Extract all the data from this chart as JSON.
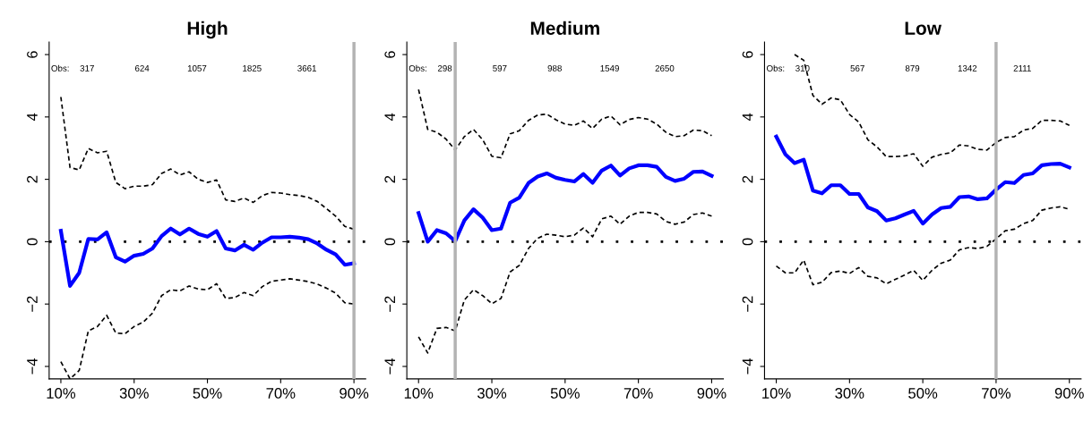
{
  "chart_data": [
    {
      "type": "line",
      "title": "High",
      "x": [
        10,
        12.5,
        15,
        17.5,
        20,
        22.5,
        25,
        27.5,
        30,
        32.5,
        35,
        37.5,
        40,
        42.5,
        45,
        47.5,
        50,
        52.5,
        55,
        57.5,
        60,
        62.5,
        65,
        67.5,
        70,
        72.5,
        75,
        77.5,
        80,
        82.5,
        85,
        87.5,
        90
      ],
      "xlim": [
        6.8,
        93.2
      ],
      "ylim": [
        -4.4,
        6.4
      ],
      "xticks": [
        {
          "value": 10,
          "label": "10%"
        },
        {
          "value": 30,
          "label": "30%"
        },
        {
          "value": 50,
          "label": "50%"
        },
        {
          "value": 70,
          "label": "70%"
        },
        {
          "value": 90,
          "label": "90%"
        }
      ],
      "yticks": [
        -4,
        -2,
        0,
        2,
        4,
        6
      ],
      "series": [
        {
          "color": "#0000ff",
          "line_style": "solid",
          "values": [
            0.35,
            -1.42,
            -1.0,
            0.09,
            0.07,
            0.3,
            -0.5,
            -0.64,
            -0.45,
            -0.39,
            -0.22,
            0.18,
            0.42,
            0.23,
            0.42,
            0.25,
            0.16,
            0.34,
            -0.22,
            -0.28,
            -0.1,
            -0.26,
            -0.03,
            0.14,
            0.14,
            0.16,
            0.13,
            0.08,
            -0.06,
            -0.26,
            -0.41,
            -0.74,
            -0.69
          ]
        },
        {
          "color": "#000000",
          "line_style": "dashed",
          "values": [
            4.64,
            2.38,
            2.3,
            2.99,
            2.85,
            2.9,
            1.9,
            1.7,
            1.78,
            1.78,
            1.83,
            2.19,
            2.33,
            2.14,
            2.24,
            2.0,
            1.9,
            1.98,
            1.34,
            1.29,
            1.4,
            1.26,
            1.48,
            1.58,
            1.56,
            1.51,
            1.48,
            1.42,
            1.29,
            1.06,
            0.82,
            0.49,
            0.4
          ]
        },
        {
          "color": "#000000",
          "line_style": "dashed",
          "values": [
            -3.85,
            -4.4,
            -4.13,
            -2.86,
            -2.72,
            -2.36,
            -2.93,
            -2.95,
            -2.72,
            -2.58,
            -2.29,
            -1.73,
            -1.54,
            -1.58,
            -1.42,
            -1.52,
            -1.54,
            -1.35,
            -1.82,
            -1.79,
            -1.63,
            -1.73,
            -1.44,
            -1.27,
            -1.23,
            -1.19,
            -1.23,
            -1.28,
            -1.36,
            -1.49,
            -1.65,
            -1.96,
            -2.0
          ]
        }
      ],
      "ref_lines": [
        {
          "axis": "y",
          "value": 0,
          "color": "#000000",
          "line_style": "dotted"
        },
        {
          "axis": "x",
          "value": 90,
          "color": "#b3b3b3",
          "line_style": "solid"
        }
      ],
      "annotations": [
        "Obs:",
        "317",
        "624",
        "1057",
        "1825",
        "3661"
      ]
    },
    {
      "type": "line",
      "title": "Medium",
      "x": [
        10,
        12.5,
        15,
        17.5,
        20,
        22.5,
        25,
        27.5,
        30,
        32.5,
        35,
        37.5,
        40,
        42.5,
        45,
        47.5,
        50,
        52.5,
        55,
        57.5,
        60,
        62.5,
        65,
        67.5,
        70,
        72.5,
        75,
        77.5,
        80,
        82.5,
        85,
        87.5,
        90
      ],
      "xlim": [
        6.8,
        93.2
      ],
      "ylim": [
        -4.4,
        6.4
      ],
      "xticks": [
        {
          "value": 10,
          "label": "10%"
        },
        {
          "value": 30,
          "label": "30%"
        },
        {
          "value": 50,
          "label": "50%"
        },
        {
          "value": 70,
          "label": "70%"
        },
        {
          "value": 90,
          "label": "90%"
        }
      ],
      "yticks": [
        -4,
        -2,
        0,
        2,
        4,
        6
      ],
      "series": [
        {
          "color": "#0000ff",
          "line_style": "solid",
          "values": [
            0.92,
            0.0,
            0.37,
            0.27,
            0.02,
            0.68,
            1.04,
            0.77,
            0.37,
            0.42,
            1.25,
            1.41,
            1.88,
            2.09,
            2.19,
            2.05,
            1.98,
            1.93,
            2.17,
            1.89,
            2.28,
            2.44,
            2.12,
            2.35,
            2.45,
            2.45,
            2.4,
            2.08,
            1.95,
            2.02,
            2.24,
            2.25,
            2.11
          ]
        },
        {
          "color": "#000000",
          "line_style": "dashed",
          "values": [
            4.88,
            3.6,
            3.51,
            3.29,
            2.94,
            3.37,
            3.6,
            3.27,
            2.74,
            2.69,
            3.46,
            3.56,
            3.89,
            4.06,
            4.09,
            3.91,
            3.77,
            3.73,
            3.87,
            3.63,
            3.93,
            4.03,
            3.75,
            3.92,
            3.98,
            3.93,
            3.77,
            3.51,
            3.37,
            3.4,
            3.58,
            3.56,
            3.4
          ]
        },
        {
          "color": "#000000",
          "line_style": "dashed",
          "values": [
            -3.05,
            -3.57,
            -2.78,
            -2.75,
            -2.86,
            -1.87,
            -1.54,
            -1.73,
            -1.99,
            -1.82,
            -0.97,
            -0.76,
            -0.22,
            0.11,
            0.24,
            0.21,
            0.16,
            0.21,
            0.44,
            0.16,
            0.73,
            0.82,
            0.56,
            0.82,
            0.94,
            0.94,
            0.89,
            0.65,
            0.56,
            0.63,
            0.87,
            0.92,
            0.82
          ]
        }
      ],
      "ref_lines": [
        {
          "axis": "y",
          "value": 0,
          "color": "#000000",
          "line_style": "dotted"
        },
        {
          "axis": "x",
          "value": 20,
          "color": "#b3b3b3",
          "line_style": "solid"
        }
      ],
      "annotations": [
        "Obs:",
        "298",
        "597",
        "988",
        "1549",
        "2650"
      ]
    },
    {
      "type": "line",
      "title": "Low",
      "x": [
        10,
        12.5,
        15,
        17.5,
        20,
        22.5,
        25,
        27.5,
        30,
        32.5,
        35,
        37.5,
        40,
        42.5,
        45,
        47.5,
        50,
        52.5,
        55,
        57.5,
        60,
        62.5,
        65,
        67.5,
        70,
        72.5,
        75,
        77.5,
        80,
        82.5,
        85,
        87.5,
        90
      ],
      "xlim": [
        6.8,
        93.2
      ],
      "ylim": [
        -4.4,
        6.4
      ],
      "xticks": [
        {
          "value": 10,
          "label": "10%"
        },
        {
          "value": 30,
          "label": "30%"
        },
        {
          "value": 50,
          "label": "50%"
        },
        {
          "value": 70,
          "label": "70%"
        },
        {
          "value": 90,
          "label": "90%"
        }
      ],
      "yticks": [
        -4,
        -2,
        0,
        2,
        4,
        6
      ],
      "series": [
        {
          "color": "#0000ff",
          "line_style": "solid",
          "values": [
            3.37,
            2.8,
            2.52,
            2.63,
            1.64,
            1.55,
            1.81,
            1.81,
            1.53,
            1.53,
            1.1,
            0.98,
            0.68,
            0.75,
            0.87,
            0.99,
            0.58,
            0.87,
            1.08,
            1.12,
            1.43,
            1.45,
            1.36,
            1.39,
            1.67,
            1.91,
            1.88,
            2.14,
            2.19,
            2.45,
            2.49,
            2.5,
            2.38
          ]
        },
        {
          "color": "#000000",
          "line_style": "dashed",
          "values": [
            null,
            null,
            6.0,
            5.82,
            4.69,
            4.41,
            4.61,
            4.55,
            4.08,
            3.84,
            3.27,
            3.04,
            2.73,
            2.73,
            2.75,
            2.82,
            2.42,
            2.71,
            2.8,
            2.85,
            3.1,
            3.07,
            2.96,
            2.94,
            3.18,
            3.34,
            3.37,
            3.58,
            3.63,
            3.89,
            3.89,
            3.87,
            3.73
          ]
        },
        {
          "color": "#000000",
          "line_style": "dashed",
          "values": [
            -0.78,
            -1.0,
            -1.0,
            -0.59,
            -1.38,
            -1.3,
            -0.99,
            -0.94,
            -1.02,
            -0.83,
            -1.11,
            -1.16,
            -1.35,
            -1.21,
            -1.07,
            -0.92,
            -1.24,
            -0.92,
            -0.69,
            -0.59,
            -0.26,
            -0.19,
            -0.22,
            -0.15,
            0.09,
            0.35,
            0.4,
            0.58,
            0.68,
            1.01,
            1.08,
            1.12,
            1.04
          ]
        }
      ],
      "ref_lines": [
        {
          "axis": "y",
          "value": 0,
          "color": "#000000",
          "line_style": "dotted"
        },
        {
          "axis": "x",
          "value": 70,
          "color": "#b3b3b3",
          "line_style": "solid"
        }
      ],
      "annotations": [
        "Obs:",
        "310",
        "567",
        "879",
        "1342",
        "2111"
      ]
    }
  ]
}
